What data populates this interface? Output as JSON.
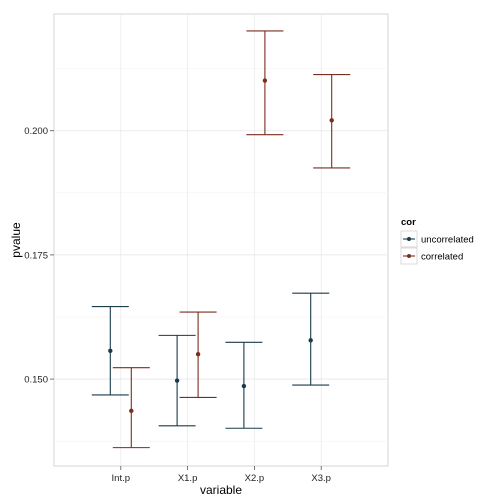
{
  "chart_data": {
    "type": "errorbar",
    "xlabel": "variable",
    "ylabel": "pvalue",
    "categories": [
      "Int.p",
      "X1.p",
      "X2.p",
      "X3.p"
    ],
    "ylim": [
      0.1325,
      0.2235
    ],
    "yticks": [
      0.15,
      0.175,
      0.2
    ],
    "ytick_labels": [
      "0.150",
      "0.175",
      "0.200"
    ],
    "grid": true,
    "legend": {
      "title": "cor",
      "position": "right"
    },
    "series": [
      {
        "name": "uncorrelated",
        "color": "#1b3a4b",
        "values": [
          0.1557,
          0.1497,
          0.1486,
          0.1578
        ],
        "lower": [
          0.1468,
          0.1406,
          0.1401,
          0.1488
        ],
        "upper": [
          0.1646,
          0.1588,
          0.1574,
          0.1673
        ]
      },
      {
        "name": "correlated",
        "color": "#7a2e20",
        "values": [
          0.1436,
          0.155,
          0.2101,
          0.2021
        ],
        "lower": [
          0.1362,
          0.1463,
          0.1992,
          0.1925
        ],
        "upper": [
          0.1523,
          0.1635,
          0.2201,
          0.2113
        ]
      }
    ]
  }
}
